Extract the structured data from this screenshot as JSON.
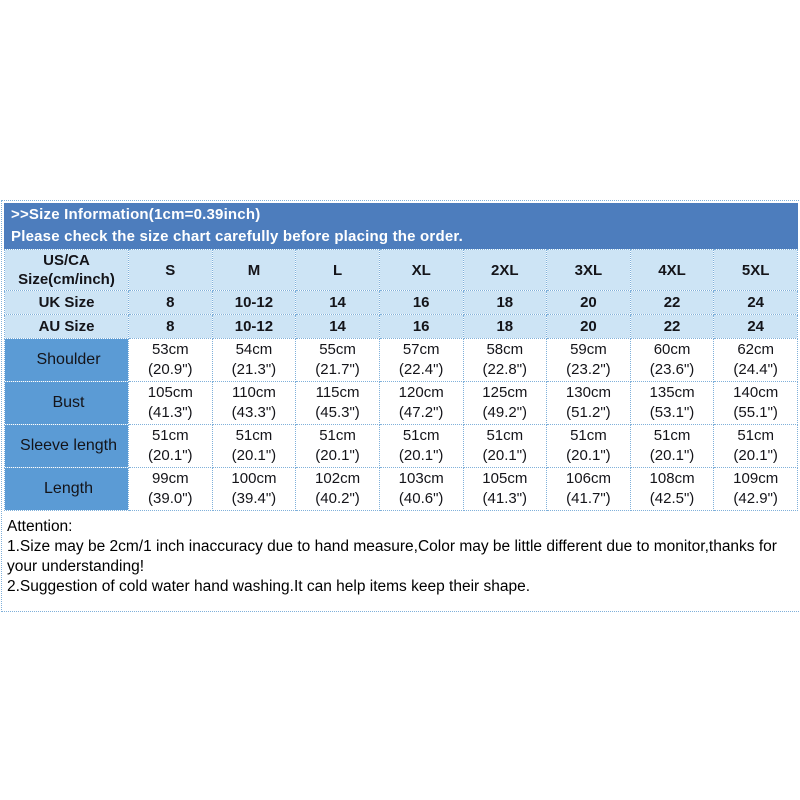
{
  "banner": {
    "line1": ">>Size Information(1cm=0.39inch)",
    "line2": "Please check the size chart carefully before placing the order."
  },
  "colors": {
    "banner_bg": "#4d7dbd",
    "header_bg": "#cde4f5",
    "label_bg": "#5b9bd5",
    "grid_dotted": "#7fb0da",
    "text": "#141419"
  },
  "size_table": {
    "corner_line1": "US/CA",
    "corner_line2": "Size(cm/inch)",
    "sizes": [
      "S",
      "M",
      "L",
      "XL",
      "2XL",
      "3XL",
      "4XL",
      "5XL"
    ],
    "uk_label": "UK Size",
    "uk_values": [
      "8",
      "10-12",
      "14",
      "16",
      "18",
      "20",
      "22",
      "24"
    ],
    "au_label": "AU Size",
    "au_values": [
      "8",
      "10-12",
      "14",
      "16",
      "18",
      "20",
      "22",
      "24"
    ],
    "measurements": [
      {
        "label": "Shoulder",
        "cm": [
          "53cm",
          "54cm",
          "55cm",
          "57cm",
          "58cm",
          "59cm",
          "60cm",
          "62cm"
        ],
        "inch": [
          "(20.9\")",
          "(21.3\")",
          "(21.7\")",
          "(22.4\")",
          "(22.8\")",
          "(23.2\")",
          "(23.6\")",
          "(24.4\")"
        ]
      },
      {
        "label": "Bust",
        "cm": [
          "105cm",
          "110cm",
          "115cm",
          "120cm",
          "125cm",
          "130cm",
          "135cm",
          "140cm"
        ],
        "inch": [
          "(41.3\")",
          "(43.3\")",
          "(45.3\")",
          "(47.2\")",
          "(49.2\")",
          "(51.2\")",
          "(53.1\")",
          "(55.1\")"
        ]
      },
      {
        "label": "Sleeve length",
        "cm": [
          "51cm",
          "51cm",
          "51cm",
          "51cm",
          "51cm",
          "51cm",
          "51cm",
          "51cm"
        ],
        "inch": [
          "(20.1\")",
          "(20.1\")",
          "(20.1\")",
          "(20.1\")",
          "(20.1\")",
          "(20.1\")",
          "(20.1\")",
          "(20.1\")"
        ]
      },
      {
        "label": "Length",
        "cm": [
          "99cm",
          "100cm",
          "102cm",
          "103cm",
          "105cm",
          "106cm",
          "108cm",
          "109cm"
        ],
        "inch": [
          "(39.0\")",
          "(39.4\")",
          "(40.2\")",
          "(40.6\")",
          "(41.3\")",
          "(41.7\")",
          "(42.5\")",
          "(42.9\")"
        ]
      }
    ]
  },
  "attention": {
    "title": "Attention:",
    "items": [
      "1.Size may be 2cm/1 inch inaccuracy due to hand measure,Color may be little different due to monitor,thanks for your understanding!",
      "2.Suggestion of cold water hand washing.It can help items keep their shape."
    ]
  }
}
